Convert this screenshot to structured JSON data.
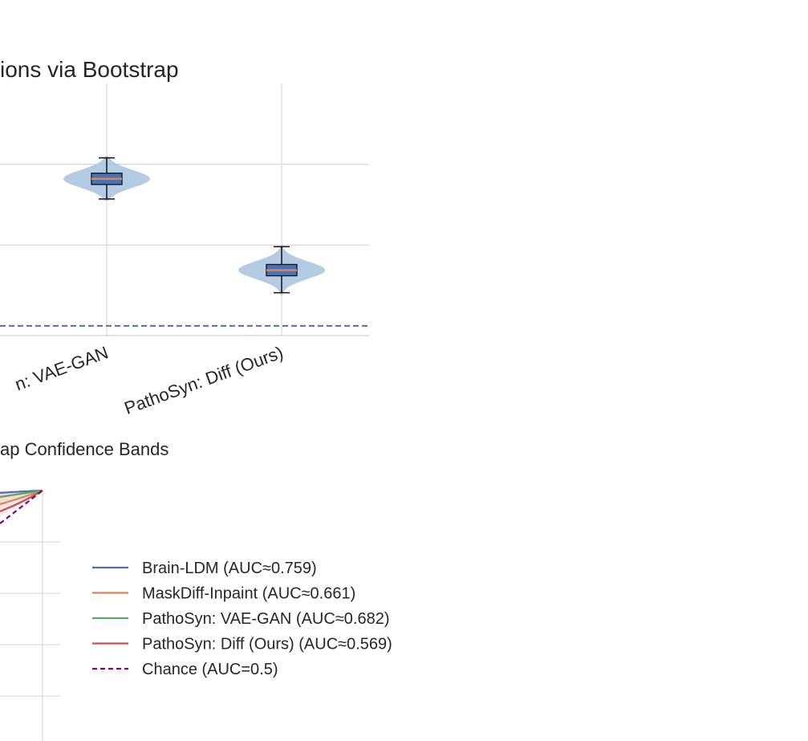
{
  "chart_data": [
    {
      "type": "violin",
      "title": "ions via Bootstrap",
      "categories": [
        "n: VAE-GAN",
        "PathoSyn: Diff (Ours)"
      ],
      "series": [
        {
          "category": "n: VAE-GAN",
          "median": 0.682,
          "q1": 0.675,
          "q3": 0.689,
          "whisker_low": 0.657,
          "whisker_high": 0.708,
          "kde_min": 0.655,
          "kde_max": 0.71
        },
        {
          "category": "PathoSyn: Diff (Ours)",
          "median": 0.569,
          "q1": 0.562,
          "q3": 0.576,
          "whisker_low": 0.541,
          "whisker_high": 0.598,
          "kde_min": 0.538,
          "kde_max": 0.6
        }
      ],
      "reference_line": {
        "value": 0.5,
        "style": "dashed",
        "color": "#4c72b0"
      },
      "ylim": [
        0.488,
        0.8
      ],
      "grid": true,
      "colors": {
        "violin": "#a6c3de",
        "box": "#4c72b0",
        "median": "#dd8452"
      }
    },
    {
      "type": "line",
      "title": "ap Confidence Bands",
      "series": [
        {
          "name": "Brain-LDM (AUC≈0.759)",
          "color": "#4c72b0"
        },
        {
          "name": "MaskDiff-Inpaint (AUC≈0.661)",
          "color": "#dd8452"
        },
        {
          "name": "PathoSyn: VAE-GAN (AUC≈0.682)",
          "color": "#55a868"
        },
        {
          "name": "PathoSyn: Diff (Ours) (AUC≈0.569)",
          "color": "#c44e52"
        },
        {
          "name": "Chance (AUC=0.5)",
          "color": "#800080",
          "dashed": true
        }
      ],
      "legend_position": "right",
      "grid": true
    }
  ]
}
